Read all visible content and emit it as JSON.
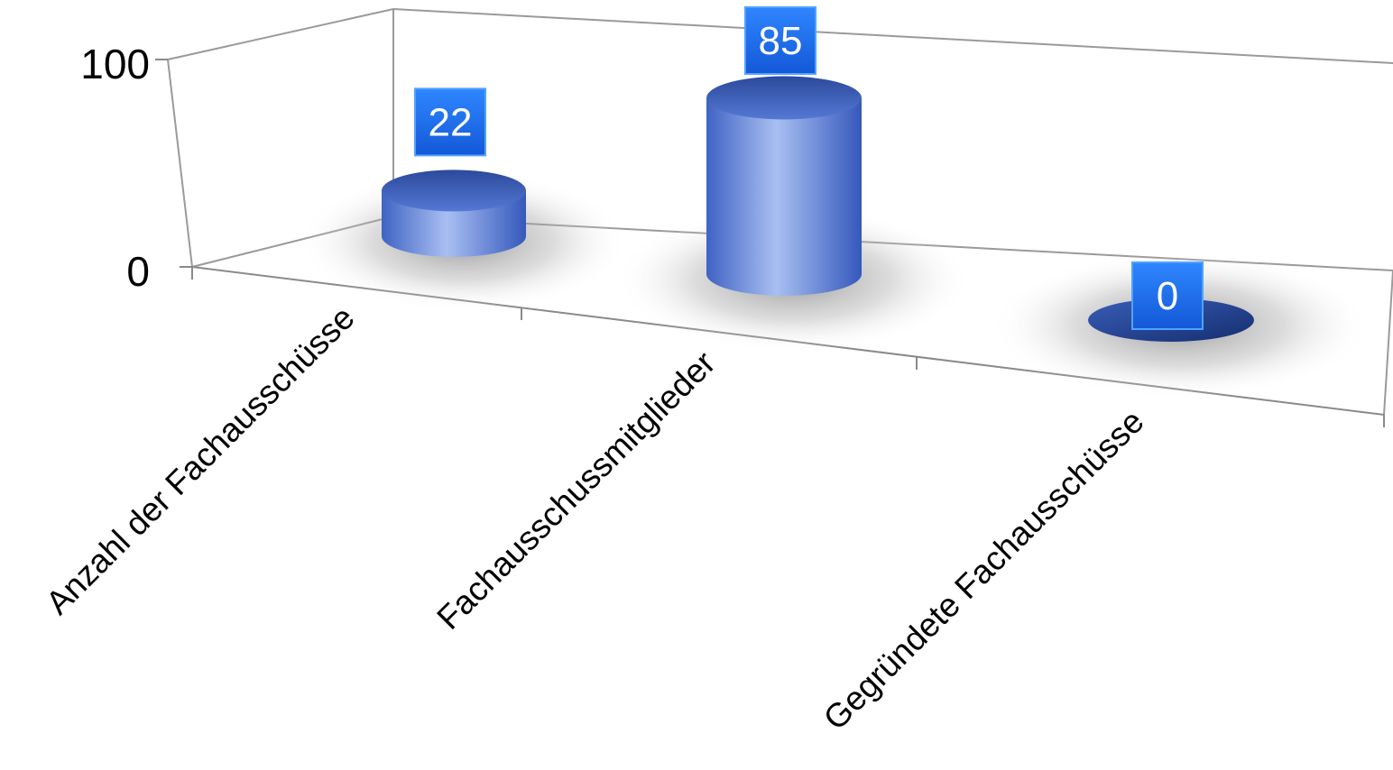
{
  "chart_data": {
    "type": "bar",
    "style": "3d-cylinder",
    "categories": [
      "Anzahl der Fachausschüsse",
      "Fachausschussmitglieder",
      "Gegründete Fachausschüsse"
    ],
    "series": [
      {
        "values": [
          22,
          85,
          0
        ]
      }
    ],
    "data_labels": [
      "22",
      "85",
      "0"
    ],
    "ylim": [
      0,
      100
    ],
    "yticks": [
      "0",
      "100"
    ],
    "grid": false,
    "legend": "none",
    "colors": {
      "bar_light": "#9db4ee",
      "bar_mid": "#6283d6",
      "bar_dark": "#2a4aa3",
      "label_bg": "#1a6cf2",
      "label_border": "#4fa3ff"
    }
  }
}
